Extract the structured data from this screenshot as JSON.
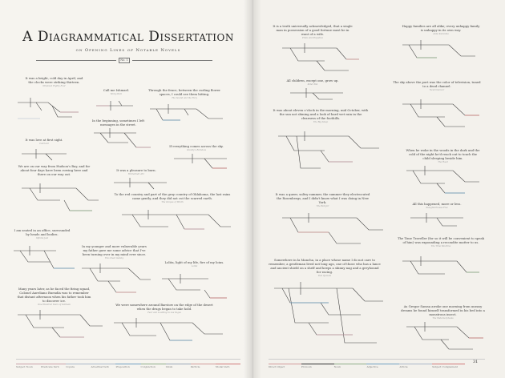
{
  "title": "A Diagrammatical Dissertation",
  "subtitle_pre": "on Opening Lines",
  "subtitle_of": "of",
  "subtitle_post": "Notable Novels",
  "ornament_label": "No. 1",
  "legend_left": [
    {
      "label": "Subject Noun",
      "color": "#c9a0a8"
    },
    {
      "label": "Predicate Verb",
      "color": "#c9a0a8"
    },
    {
      "label": "Copula",
      "color": "#a9b7c9"
    },
    {
      "label": "Adverbial Verb",
      "color": "#a9b7c9"
    },
    {
      "label": "Preposition",
      "color": "#6f9fc1"
    },
    {
      "label": "Conjunction",
      "color": "#8fae8a"
    },
    {
      "label": "Idiom",
      "color": "#9aa7b8"
    },
    {
      "label": "Particle",
      "color": "#d39a9a"
    },
    {
      "label": "Modal Verb",
      "color": "#d17a7a"
    }
  ],
  "legend_right": [
    {
      "label": "Direct Object",
      "color": "#d39a9a"
    },
    {
      "label": "Pronoun",
      "color": "#333333"
    },
    {
      "label": "Noun",
      "color": "#8fae8a"
    },
    {
      "label": "Adjective",
      "color": "#6f9fc1"
    },
    {
      "label": "Article",
      "color": "#a9b7c9"
    },
    {
      "label": "Subject Complement",
      "color": "#d17a7a"
    }
  ],
  "page_number": "31",
  "left_items": [
    {
      "sentence": "It was a bright, cold day in April, and the clocks were striking thirteen.",
      "source": "Nineteen Eighty-Four"
    },
    {
      "sentence": "Call me Ishmael.",
      "source": "Moby-Dick"
    },
    {
      "sentence": "Through the fence, between the curling flower spaces, I could see them hitting.",
      "source": "The Sound and the Fury"
    },
    {
      "sentence": "In the beginning, sometimes I left messages in the street.",
      "source": ""
    },
    {
      "sentence": "It was love at first sight.",
      "source": "Catch-22"
    },
    {
      "sentence": "If everything comes across the sky.",
      "source": "Gravity's Rainbow"
    },
    {
      "sentence": "We are on our way from Hudson's Bay, and for about four days have been rowing here and there on our way out.",
      "source": ""
    },
    {
      "sentence": "It was a pleasure to burn.",
      "source": "Fahrenheit 451"
    },
    {
      "sentence": "To the red country and part of the gray country of Oklahoma, the last rains came gently, and they did not cut the scarred earth.",
      "source": "The Grapes of Wrath"
    },
    {
      "sentence": "I am seated in an office, surrounded by heads and bodies.",
      "source": "Infinite Jest"
    },
    {
      "sentence": "In my younger and more vulnerable years my father gave me some advice that I've been turning over in my mind ever since.",
      "source": "The Great Gatsby"
    },
    {
      "sentence": "Lolita, light of my life, fire of my loins.",
      "source": "Lolita"
    },
    {
      "sentence": "Many years later, as he faced the firing squad, Colonel Aureliano Buendía was to remember that distant afternoon when his father took him to discover ice.",
      "source": "One Hundred Years of Solitude"
    },
    {
      "sentence": "We were somewhere around Barstow on the edge of the desert when the drugs began to take hold.",
      "source": "Fear and Loathing in Las Vegas"
    }
  ],
  "right_items": [
    {
      "sentence": "It is a truth universally acknowledged, that a single man in possession of a good fortune must be in want of a wife.",
      "source": "Pride and Prejudice"
    },
    {
      "sentence": "Happy families are all alike; every unhappy family is unhappy in its own way.",
      "source": "Anna Karenina"
    },
    {
      "sentence": "All children, except one, grow up.",
      "source": "Peter Pan"
    },
    {
      "sentence": "The sky above the port was the color of television, tuned to a dead channel.",
      "source": "Neuromancer"
    },
    {
      "sentence": "It was about eleven o'clock in the morning, mid October, with the sun not shining and a look of hard wet rain in the clearness of the foothills.",
      "source": "The Big Sleep"
    },
    {
      "sentence": "When he woke in the woods in the dark and the cold of the night he'd reach out to touch the child sleeping beside him.",
      "source": "The Road"
    },
    {
      "sentence": "It was a queer, sultry summer, the summer they electrocuted the Rosenbergs, and I didn't know what I was doing in New York.",
      "source": "The Bell Jar"
    },
    {
      "sentence": "All this happened, more or less.",
      "source": "Slaughterhouse-Five"
    },
    {
      "sentence": "The Time Traveller (for so it will be convenient to speak of him) was expounding a recondite matter to us.",
      "source": "The Time Machine"
    },
    {
      "sentence": "Somewhere in la Mancha, in a place whose name I do not care to remember, a gentleman lived not long ago, one of those who has a lance and ancient shield on a shelf and keeps a skinny nag and a greyhound for racing.",
      "source": "Don Quixote"
    },
    {
      "sentence": "As Gregor Samsa awoke one morning from uneasy dreams he found himself transformed in his bed into a monstrous insect.",
      "source": "The Metamorphosis"
    }
  ]
}
